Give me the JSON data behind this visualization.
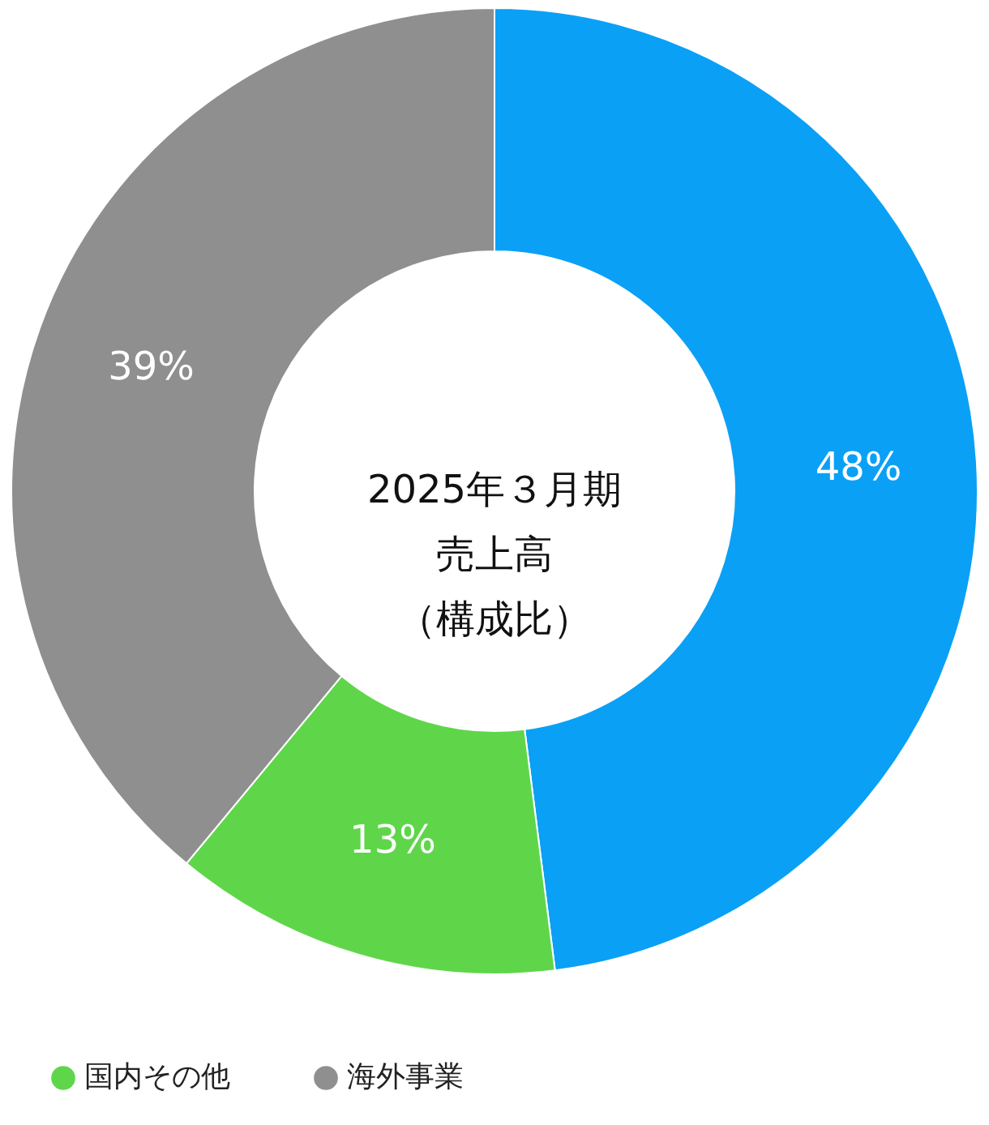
{
  "chart_data": {
    "type": "donut",
    "title": "2025年３月期",
    "subtitle": "売上高（構成比）",
    "categories": [
      null,
      "国内その他",
      "海外事業"
    ],
    "values": [
      48,
      13,
      39
    ],
    "colors": [
      "#0aa0f5",
      "#5fd64a",
      "#8f8f8f"
    ],
    "value_labels": [
      "48%",
      "13%",
      "39%"
    ],
    "legend": "bottom"
  }
}
